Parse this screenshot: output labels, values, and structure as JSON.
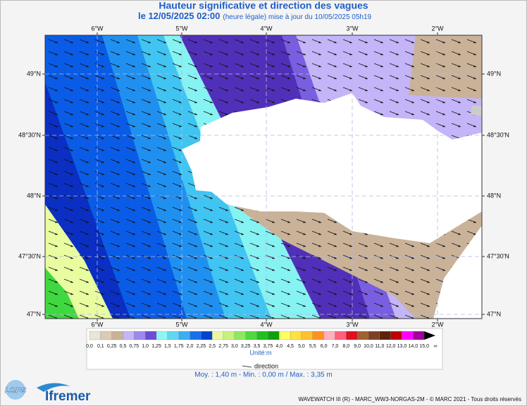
{
  "header": {
    "title": "Hauteur significative et direction des vagues",
    "date": "le 12/05/2025 02:00",
    "note": "(heure légale) mise à jour du 10/05/2025 05h19"
  },
  "map": {
    "lon_labels": [
      "6°W",
      "5°W",
      "4°W",
      "3°W",
      "2°W"
    ],
    "lat_labels": [
      "49°N",
      "48°30'N",
      "48°N",
      "47°30'N",
      "47°N"
    ]
  },
  "legend": {
    "labels": [
      "0,0",
      "0,1",
      "0,25",
      "0,5",
      "0,75",
      "1,0",
      "1,25",
      "1,5",
      "1,75",
      "2,0",
      "2,25",
      "2,5",
      "2,75",
      "3,0",
      "3,25",
      "3,5",
      "3,75",
      "4,0",
      "4,5",
      "5,0",
      "5,5",
      "6,0",
      "7,0",
      "8,0",
      "9,0",
      "10,0",
      "11,0",
      "12,0",
      "13,0",
      "14,0",
      "15,0",
      "∞"
    ],
    "colors": [
      "#ece4d8",
      "#dccab4",
      "#c9b298",
      "#c4b4f8",
      "#9c88ee",
      "#6a4cd6",
      "#8ff5f5",
      "#60d8f0",
      "#38b0f0",
      "#1a70e8",
      "#0044d0",
      "#e8f8a0",
      "#c8f080",
      "#90e860",
      "#50d840",
      "#20c020",
      "#10a010",
      "#ffff60",
      "#ffe040",
      "#ffc030",
      "#ff9020",
      "#ffb0c0",
      "#ff6080",
      "#e01020",
      "#a06030",
      "#804020",
      "#602010",
      "#c00000",
      "#ff00ff",
      "#a000a0",
      "#000000"
    ],
    "unit": "Unité:m",
    "direction": "direction"
  },
  "stats": "Moy. : 1,40 m   -   Min. : 0,00 m / Max. : 3,35 m",
  "footer": {
    "credit": "WAVEWATCH III (R) - MARC_WW3-NORGAS-2M - © MARC 2021 - Tous droits réservés",
    "logo_left": "LOPS",
    "logo_right": "Ifremer"
  }
}
